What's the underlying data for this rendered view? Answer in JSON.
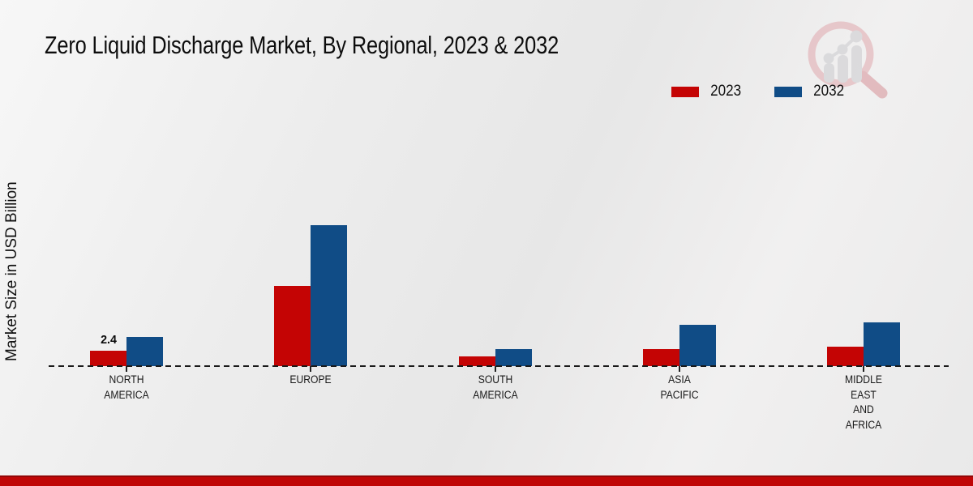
{
  "page": {
    "title": "Zero Liquid Discharge Market, By Regional, 2023 & 2032",
    "ylabel": "Market Size in USD Billion"
  },
  "legend": {
    "items": [
      {
        "label": "2023",
        "color": "#c40404"
      },
      {
        "label": "2032",
        "color": "#104c86"
      }
    ]
  },
  "colors": {
    "series_2023": "#c40404",
    "series_2032": "#104c86",
    "baseline": "#1a1a1a",
    "bottom_band": "#bf0606",
    "background": "#ececec"
  },
  "watermark": {
    "name": "magnifier-bar-chart-logo"
  },
  "chart_data": {
    "type": "bar",
    "title": "Zero Liquid Discharge Market, By Regional, 2023 & 2032",
    "xlabel": "",
    "ylabel": "Market Size in USD Billion",
    "categories": [
      "NORTH AMERICA",
      "EUROPE",
      "SOUTH AMERICA",
      "ASIA PACIFIC",
      "MIDDLE EAST AND AFRICA"
    ],
    "category_lines": [
      [
        "NORTH",
        "AMERICA"
      ],
      [
        "EUROPE"
      ],
      [
        "SOUTH",
        "AMERICA"
      ],
      [
        "ASIA",
        "PACIFIC"
      ],
      [
        "MIDDLE",
        "EAST",
        "AND",
        "AFRICA"
      ]
    ],
    "series": [
      {
        "name": "2023",
        "color": "#c40404",
        "values": [
          2.4,
          12.5,
          1.5,
          2.7,
          3.0
        ]
      },
      {
        "name": "2032",
        "color": "#104c86",
        "values": [
          4.5,
          22.0,
          2.7,
          6.4,
          6.8
        ]
      }
    ],
    "value_labels_shown": [
      {
        "category": "NORTH AMERICA",
        "series": "2023",
        "text": "2.4"
      }
    ],
    "ylim": [
      0,
      24
    ],
    "grid": false,
    "baseline_style": "dashed",
    "legend_position": "top-right"
  }
}
